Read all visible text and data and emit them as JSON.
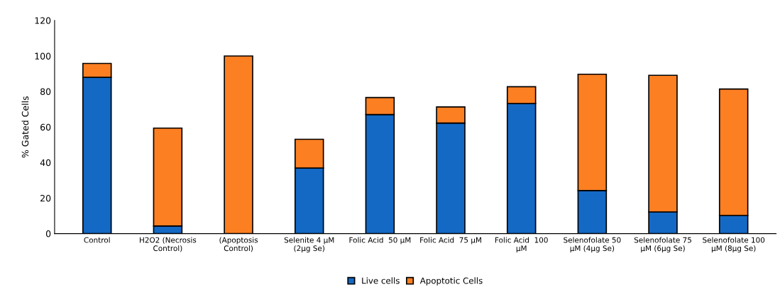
{
  "chart_data": {
    "type": "bar",
    "stacked": true,
    "ylabel": "% Gated Cells",
    "categories": [
      "Control",
      "H2O2 (Necrosis\nControl)",
      "(Apoptosis\nControl)",
      "Selenite 4 µM\n(2µg Se)",
      "Folic Acid  50 µM",
      "Folic Acid  75 µM",
      "Folic Acid  100\nµM",
      "Selenofolate 50\nµM (4µg Se)",
      "Selenofolate 75\nµM (6µg Se)",
      "Selenofolate 100\nµM (8µg Se)"
    ],
    "series": [
      {
        "name": "Live cells",
        "color": "#1469c4",
        "values": [
          88.0,
          4.3,
          0,
          36.9,
          67.0,
          62.2,
          73.2,
          24.2,
          12.2,
          10.2
        ]
      },
      {
        "name": "Apoptotic Cells",
        "color": "#fc7f22",
        "values": [
          7.8,
          55.1,
          100,
          16.2,
          9.6,
          9.1,
          9.5,
          65.5,
          76.9,
          71.2
        ]
      }
    ],
    "ylim": [
      0,
      120
    ],
    "yticks": [
      0,
      20,
      40,
      60,
      80,
      100,
      120
    ],
    "grid": false,
    "legend": "bottom"
  }
}
